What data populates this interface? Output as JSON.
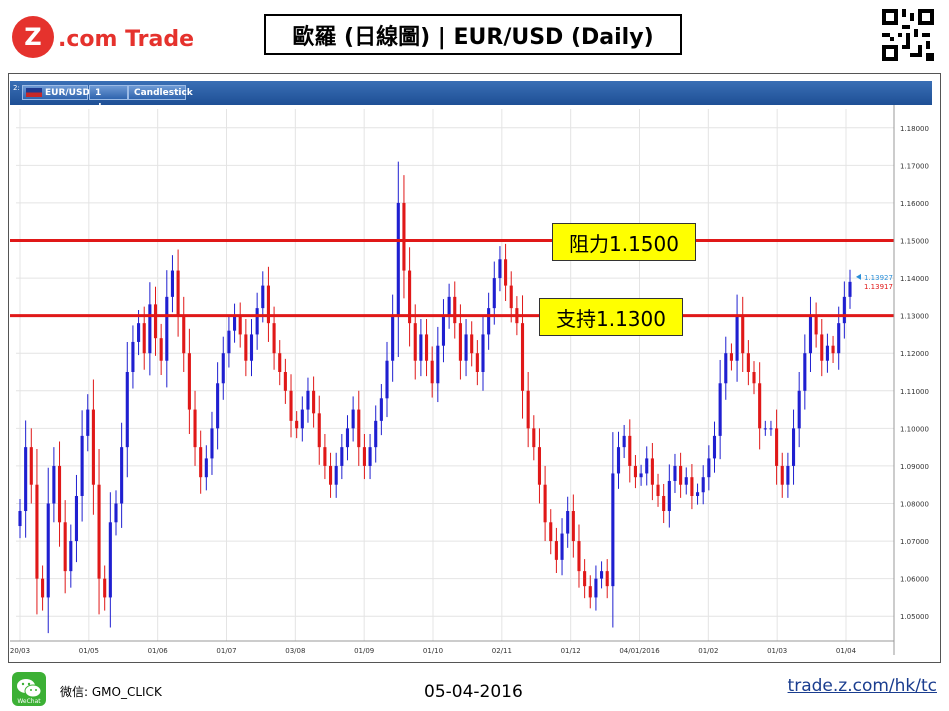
{
  "header": {
    "brand": "Z.com Trade",
    "title": "歐羅 (日線圖) | EUR/USD  (Daily)"
  },
  "toolbar": {
    "symbol": "EUR/USD",
    "interval": "1 day",
    "chart_type": "Candlestick"
  },
  "annotations": {
    "resistance_label": "阻力1.1500",
    "support_label": "支持1.1300",
    "last_price_up": "1.13927",
    "last_price_down": "1.13917"
  },
  "footer": {
    "wechat_label": "微信: GMO_CLICK",
    "wechat_caption": "WeChat",
    "date": "05-04-2016",
    "link": "trade.z.com/hk/tc"
  },
  "colors": {
    "up": "#1f1fd0",
    "down": "#e01818",
    "level_line": "#e01818",
    "label_bg": "#ffff00",
    "brand_red": "#e5322d",
    "toolbar_blue": "#2a5ea8"
  },
  "chart_data": {
    "type": "candlestick",
    "symbol": "EUR/USD",
    "interval": "1 day",
    "ylim": [
      1.045,
      1.185
    ],
    "y_ticks": [
      "1.18000",
      "1.17000",
      "1.16000",
      "1.15000",
      "1.14000",
      "1.13000",
      "1.12000",
      "1.11000",
      "1.10000",
      "1.09000",
      "1.08000",
      "1.07000",
      "1.06000",
      "1.05000"
    ],
    "x_ticks": [
      "20/03",
      "01/05",
      "01/06",
      "01/07",
      "03/08",
      "01/09",
      "01/10",
      "02/11",
      "01/12",
      "04/01/2016",
      "01/02",
      "01/03",
      "01/04"
    ],
    "levels": [
      {
        "label": "阻力1.1500",
        "value": 1.15
      },
      {
        "label": "支持1.1300",
        "value": 1.13
      }
    ],
    "last_price": {
      "ask": 1.13927,
      "bid": 1.13917
    },
    "closes": [
      1.078,
      1.095,
      1.085,
      1.06,
      1.055,
      1.08,
      1.09,
      1.075,
      1.062,
      1.07,
      1.082,
      1.098,
      1.105,
      1.085,
      1.06,
      1.055,
      1.075,
      1.08,
      1.095,
      1.115,
      1.123,
      1.128,
      1.12,
      1.133,
      1.124,
      1.118,
      1.135,
      1.142,
      1.13,
      1.12,
      1.105,
      1.095,
      1.087,
      1.092,
      1.1,
      1.112,
      1.12,
      1.126,
      1.13,
      1.125,
      1.118,
      1.125,
      1.132,
      1.138,
      1.128,
      1.12,
      1.115,
      1.11,
      1.102,
      1.1,
      1.105,
      1.11,
      1.104,
      1.095,
      1.09,
      1.085,
      1.09,
      1.095,
      1.1,
      1.105,
      1.095,
      1.09,
      1.095,
      1.102,
      1.108,
      1.118,
      1.13,
      1.16,
      1.142,
      1.128,
      1.118,
      1.125,
      1.118,
      1.112,
      1.122,
      1.13,
      1.135,
      1.128,
      1.118,
      1.125,
      1.12,
      1.115,
      1.125,
      1.132,
      1.14,
      1.145,
      1.138,
      1.132,
      1.128,
      1.11,
      1.1,
      1.095,
      1.085,
      1.075,
      1.07,
      1.065,
      1.072,
      1.078,
      1.07,
      1.062,
      1.058,
      1.055,
      1.06,
      1.062,
      1.058,
      1.088,
      1.095,
      1.098,
      1.09,
      1.087,
      1.088,
      1.092,
      1.085,
      1.082,
      1.078,
      1.086,
      1.09,
      1.085,
      1.087,
      1.082,
      1.083,
      1.087,
      1.092,
      1.098,
      1.112,
      1.12,
      1.118,
      1.13,
      1.12,
      1.115,
      1.112,
      1.1,
      1.1,
      1.1,
      1.09,
      1.085,
      1.09,
      1.1,
      1.11,
      1.12,
      1.13,
      1.125,
      1.118,
      1.122,
      1.12,
      1.128,
      1.135,
      1.139
    ]
  }
}
